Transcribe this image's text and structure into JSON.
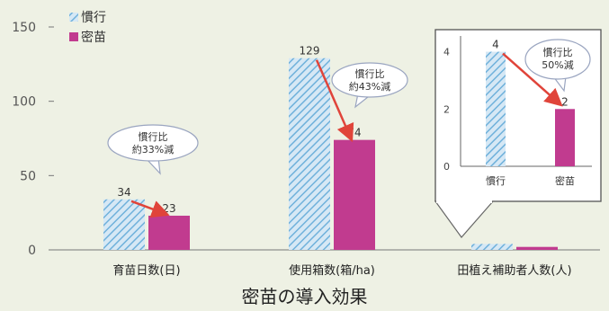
{
  "caption": "密苗の導入効果",
  "chart_data": [
    {
      "type": "bar",
      "categories": [
        "育苗日数(日)",
        "使用箱数(箱/ha)",
        "田植え補助者人数(人)"
      ],
      "series": [
        {
          "name": "慣行",
          "values": [
            34,
            129,
            4
          ],
          "color": "#9ccbe8",
          "pattern": "diagonal-hatch"
        },
        {
          "name": "密苗",
          "values": [
            23,
            74,
            2
          ],
          "color": "#c13b8f"
        }
      ],
      "data_labels": {
        "慣行": [
          "34",
          "129",
          ""
        ],
        "密苗": [
          "23",
          "74",
          ""
        ]
      },
      "yticks": [
        0,
        50,
        100,
        150
      ],
      "ylim": [
        0,
        150
      ],
      "legend_position": "top-left",
      "grid": false,
      "annotations": [
        {
          "category": "育苗日数(日)",
          "text": [
            "慣行比",
            "約33%減"
          ]
        },
        {
          "category": "使用箱数(箱/ha)",
          "text": [
            "慣行比",
            "約43%減"
          ]
        }
      ],
      "trend_line_color": "#e0443a"
    },
    {
      "type": "bar",
      "role": "inset",
      "categories": [
        "慣行",
        "密苗"
      ],
      "values": [
        4,
        2
      ],
      "data_labels": [
        "4",
        "2"
      ],
      "yticks": [
        0,
        2,
        4
      ],
      "ylim": [
        0,
        4.3
      ],
      "annotation": {
        "text": [
          "慣行比",
          "50%減"
        ]
      }
    }
  ]
}
